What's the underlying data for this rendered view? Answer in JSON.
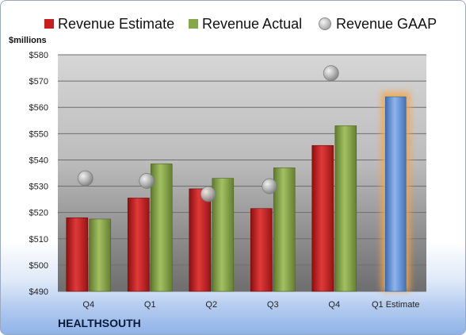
{
  "chart_data": {
    "type": "bar",
    "ylabel": "$millions",
    "footer": "HEALTHSOUTH",
    "categories": [
      "Q4",
      "Q1",
      "Q2",
      "Q3",
      "Q4",
      "Q1 Estimate"
    ],
    "ylim": [
      490,
      580
    ],
    "ytick_labels": [
      "$490",
      "$500",
      "$510",
      "$520",
      "$530",
      "$540",
      "$550",
      "$560",
      "$570",
      "$580"
    ],
    "ytick_values": [
      490,
      500,
      510,
      520,
      530,
      540,
      550,
      560,
      570,
      580
    ],
    "grid": true,
    "legend": "top",
    "series": [
      {
        "name": "Revenue Estimate",
        "kind": "bar",
        "color": "#c81e1e",
        "values": [
          518,
          525.5,
          529,
          521.5,
          545.5,
          null
        ]
      },
      {
        "name": "Revenue Actual",
        "kind": "bar",
        "color": "#86a64a",
        "values": [
          517.5,
          538.5,
          533,
          537,
          553,
          null
        ]
      },
      {
        "name": "Revenue GAAP",
        "kind": "marker",
        "color": "#b0b0b0",
        "values": [
          533,
          532,
          527,
          530,
          573,
          null
        ]
      },
      {
        "name": "Q1 Estimate",
        "kind": "bar",
        "color": "#5b8fd6",
        "highlight_color": "#f5a646",
        "values": [
          null,
          null,
          null,
          null,
          null,
          564
        ]
      }
    ]
  }
}
